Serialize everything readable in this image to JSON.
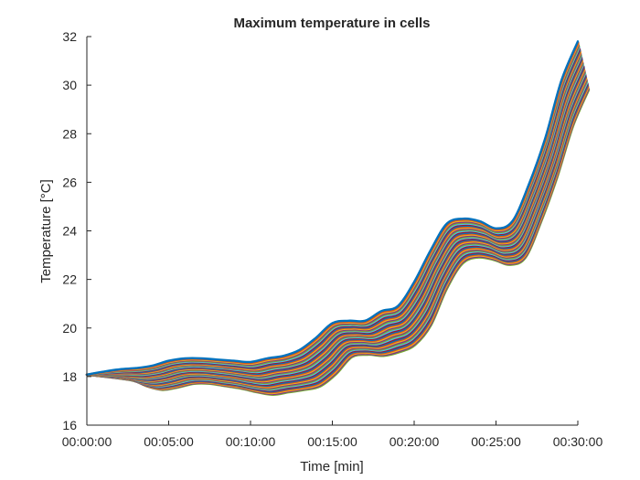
{
  "chart_data": {
    "type": "line",
    "title": "Maximum temperature in cells",
    "xlabel": "Time [min]",
    "ylabel": "Temperature [°C]",
    "xlim": [
      0,
      30
    ],
    "ylim": [
      16,
      32
    ],
    "x_ticks": [
      0,
      5,
      10,
      15,
      20,
      25,
      30
    ],
    "x_tick_labels": [
      "00:00:00",
      "00:05:00",
      "00:10:00",
      "00:15:00",
      "00:20:00",
      "00:25:00",
      "00:30:00"
    ],
    "y_ticks": [
      16,
      18,
      20,
      22,
      24,
      26,
      28,
      30,
      32
    ],
    "y_tick_labels": [
      "16",
      "18",
      "20",
      "22",
      "24",
      "26",
      "28",
      "30",
      "32"
    ],
    "grid": false,
    "legend": "none",
    "series_count": 40,
    "series_colors": [
      "#0072BD",
      "#D95319",
      "#EDB120",
      "#7E2F8E",
      "#77AC30",
      "#4DBEEE",
      "#A2142F"
    ],
    "envelope": {
      "x": [
        0,
        1,
        2,
        3,
        4,
        5,
        6,
        7,
        8,
        9,
        10,
        11,
        12,
        13,
        14,
        15,
        16,
        17,
        18,
        19,
        20,
        21,
        22,
        23,
        24,
        25,
        26,
        27,
        28,
        29,
        30
      ],
      "upper": [
        18.1,
        18.2,
        18.3,
        18.35,
        18.45,
        18.65,
        18.75,
        18.75,
        18.7,
        18.65,
        18.6,
        18.75,
        18.85,
        19.1,
        19.6,
        20.2,
        20.3,
        20.3,
        20.7,
        20.9,
        21.9,
        23.2,
        24.3,
        24.5,
        24.4,
        24.1,
        24.4,
        25.9,
        27.8,
        30.2,
        31.8
      ],
      "lower": [
        18.05,
        17.85,
        17.6,
        17.45,
        17.55,
        17.7,
        17.7,
        17.6,
        17.5,
        17.35,
        17.25,
        17.35,
        17.45,
        17.6,
        18.1,
        18.8,
        18.9,
        18.85,
        19.0,
        19.3,
        20.1,
        21.6,
        22.65,
        22.9,
        22.8,
        22.6,
        22.9,
        24.4,
        26.2,
        28.3,
        29.8
      ]
    }
  }
}
